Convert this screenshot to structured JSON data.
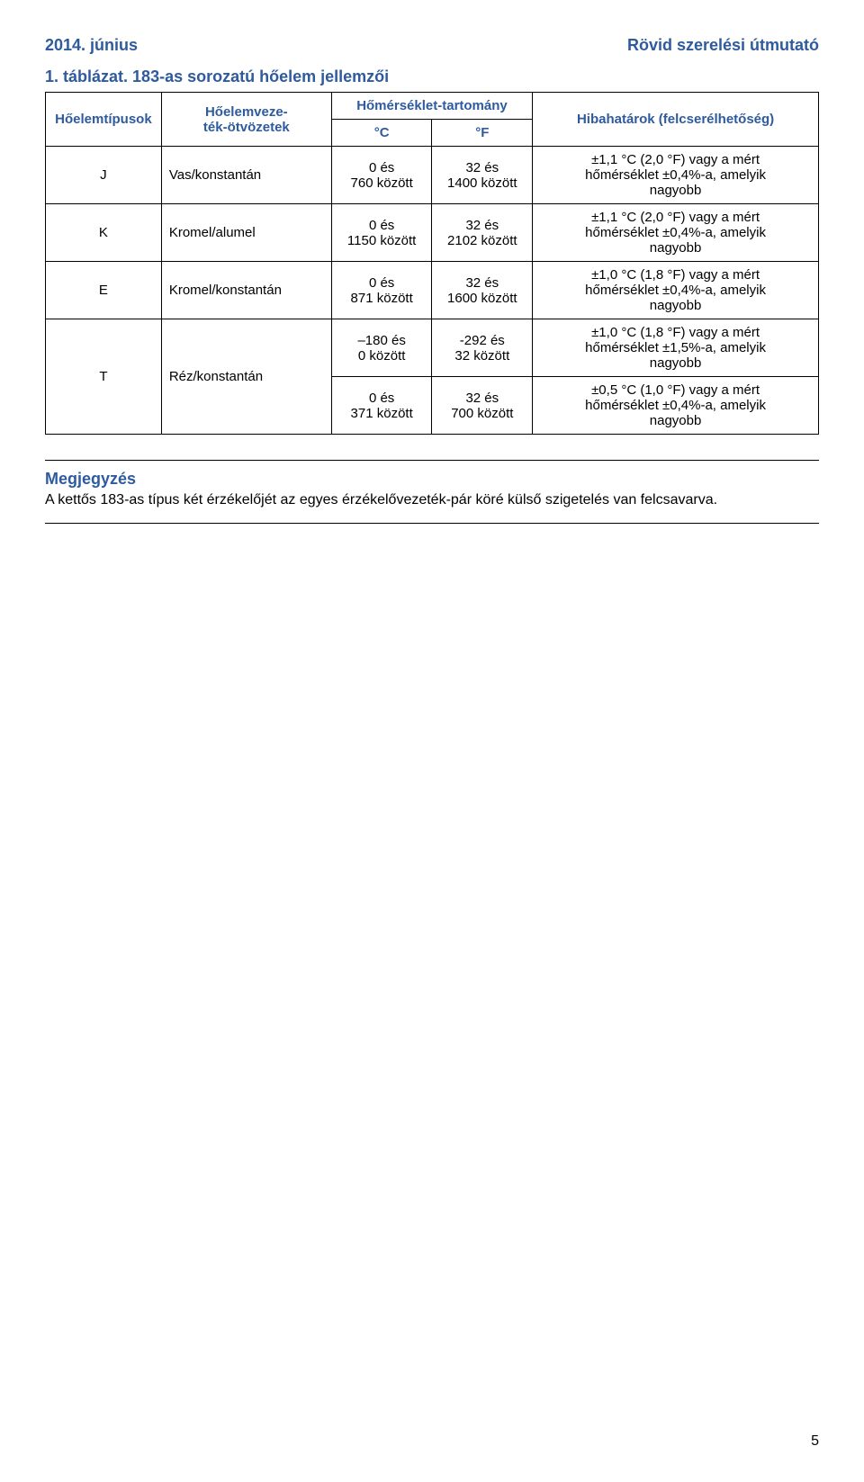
{
  "colors": {
    "brand_blue": "#2e5a9e",
    "text_black": "#000000",
    "background": "#ffffff",
    "border": "#000000"
  },
  "fonts": {
    "family": "Arial",
    "header_size_pt": 14,
    "table_size_pt": 11,
    "note_title_pt": 14,
    "note_body_pt": 12
  },
  "header": {
    "left": "2014. június",
    "right": "Rövid szerelési útmutató"
  },
  "caption": {
    "label": "1. táblázat.",
    "title": "183-as sorozatú hőelem jellemzői"
  },
  "table": {
    "headers": {
      "type": "Hőelemtípusok",
      "alloy": "Hőelemveze-\nték-ötvözetek",
      "range_group": "Hőmérséklet-tartomány",
      "range_c": "°C",
      "range_f": "°F",
      "error": "Hibahatárok (felcserélhetőség)"
    },
    "rows": [
      {
        "type": "J",
        "alloy": "Vas/konstantán",
        "c": "0 és\n760 között",
        "f": "32 és\n1400 között",
        "err": "±1,1 °C (2,0 °F) vagy a mért\nhőmérséklet ±0,4%-a, amelyik\nnagyobb"
      },
      {
        "type": "K",
        "alloy": "Kromel/alumel",
        "c": "0 és\n1150 között",
        "f": "32 és\n2102 között",
        "err": "±1,1 °C (2,0 °F) vagy a mért\nhőmérséklet ±0,4%-a, amelyik\nnagyobb"
      },
      {
        "type": "E",
        "alloy": "Kromel/konstantán",
        "c": "0 és\n871 között",
        "f": "32 és\n1600 között",
        "err": "±1,0 °C (1,8 °F) vagy a mért\nhőmérséklet ±0,4%-a, amelyik\nnagyobb"
      },
      {
        "type": "T",
        "alloy": "Réz/konstantán",
        "sub": [
          {
            "c": "–180 és\n0 között",
            "f": "-292 és\n32 között",
            "err": "±1,0 °C (1,8 °F) vagy a mért\nhőmérséklet ±1,5%-a, amelyik\nnagyobb"
          },
          {
            "c": "0 és\n371 között",
            "f": "32 és\n700 között",
            "err": "±0,5 °C (1,0 °F) vagy a mért\nhőmérséklet ±0,4%-a, amelyik\nnagyobb"
          }
        ]
      }
    ]
  },
  "note": {
    "title": "Megjegyzés",
    "body": "A kettős 183-as típus két érzékelőjét az egyes érzékelővezeték-pár köré külső szigetelés van felcsavarva."
  },
  "page_number": "5"
}
